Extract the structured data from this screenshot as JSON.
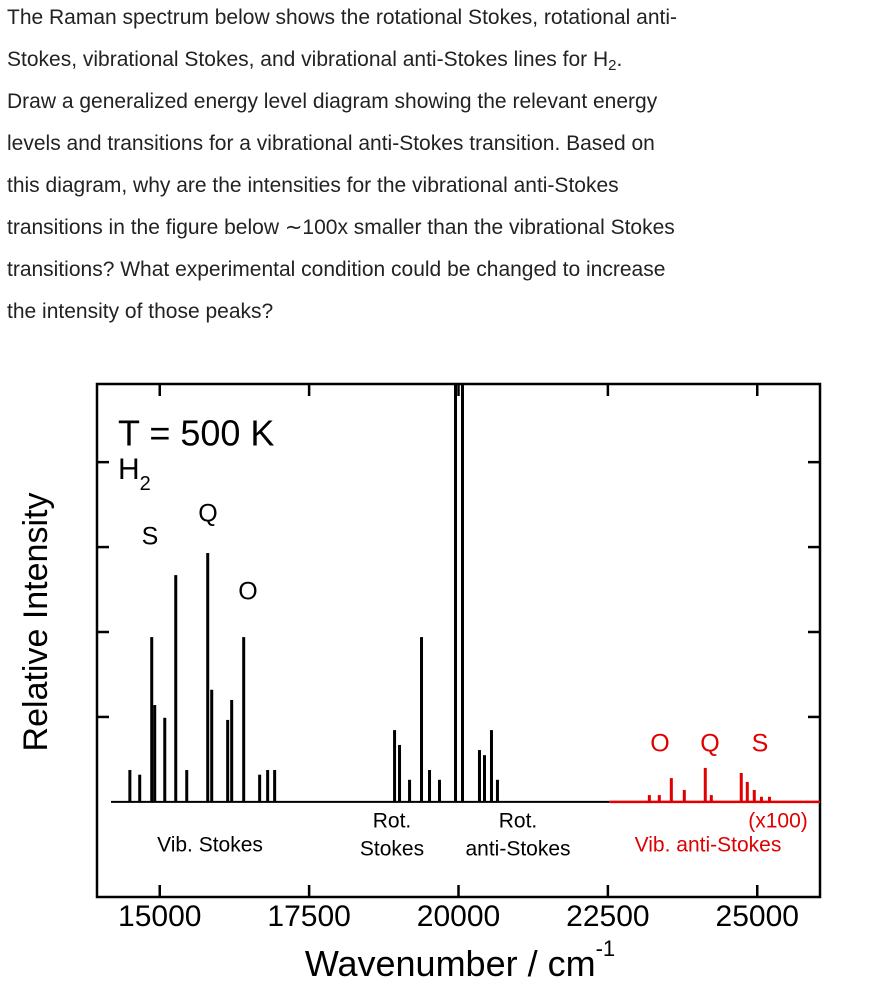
{
  "question": {
    "lines": [
      "The Raman spectrum below shows the rotational Stokes, rotational anti-",
      {
        "text": "Stokes, vibrational Stokes, and vibrational anti-Stokes lines for H",
        "sub": "2",
        "after": "."
      },
      "Draw a generalized energy level diagram showing the relevant energy",
      "levels and transitions for a vibrational anti-Stokes transition. Based on",
      "this diagram, why are the intensities for the vibrational anti-Stokes",
      "transitions in the figure below ∼100x smaller than the vibrational Stokes",
      "transitions? What experimental condition could be changed to increase",
      "the intensity of those peaks?"
    ]
  },
  "chart_data": {
    "type": "spectrum",
    "title": "T = 500 K",
    "sample": "H",
    "sample_sub": "2",
    "xlabel": "Wavenumber / cm",
    "xlabel_sup": "-1",
    "ylabel": "Relative Intensity",
    "xlim": [
      13950,
      26050
    ],
    "ylim": [
      -2.24,
      9.84
    ],
    "xticks": [
      15000,
      17500,
      20000,
      22500,
      25000
    ],
    "yticks": [
      2,
      4,
      6,
      8
    ],
    "series": [
      {
        "color": "#000000",
        "x": [
          14500,
          14665,
          14866,
          14916,
          15084,
          15268,
          15452,
          15803,
          15870,
          16137,
          16204,
          16405,
          16672,
          16806,
          16923,
          18930,
          19013,
          19181,
          19381,
          19515,
          19682,
          19950,
          20067,
          20351,
          20435,
          20552,
          20652
        ],
        "values": [
          0.75,
          0.64,
          3.88,
          2.28,
          1.98,
          5.34,
          0.75,
          5.86,
          2.64,
          1.93,
          2.4,
          3.88,
          0.64,
          0.75,
          0.75,
          1.69,
          1.34,
          0.52,
          3.88,
          0.75,
          0.52,
          9.84,
          9.84,
          1.22,
          1.1,
          1.69,
          0.52
        ]
      },
      {
        "color": "#e00000",
        "x": [
          23194,
          23361,
          23562,
          23779,
          24130,
          24231,
          24732,
          24833,
          24950,
          25070,
          25204
        ],
        "values": [
          0.16,
          0.16,
          0.56,
          0.28,
          0.8,
          0.16,
          0.68,
          0.47,
          0.28,
          0.12,
          0.12
        ]
      }
    ],
    "annotations": [
      {
        "text": "S",
        "color": "#000000"
      },
      {
        "text": "Q",
        "color": "#000000"
      },
      {
        "text": "O",
        "color": "#000000"
      },
      {
        "text": "O",
        "color": "#e00000"
      },
      {
        "text": "Q",
        "color": "#e00000"
      },
      {
        "text": "S",
        "color": "#e00000"
      },
      {
        "text": "Rot.",
        "color": "#000000"
      },
      {
        "text": "Stokes",
        "color": "#000000"
      },
      {
        "text": "Rot.",
        "color": "#000000"
      },
      {
        "text": "anti-Stokes",
        "color": "#000000"
      },
      {
        "text": "Vib. Stokes",
        "color": "#000000"
      },
      {
        "text": "(x100)",
        "color": "#e00000"
      },
      {
        "text": "Vib. anti-Stokes",
        "color": "#e00000"
      }
    ]
  }
}
